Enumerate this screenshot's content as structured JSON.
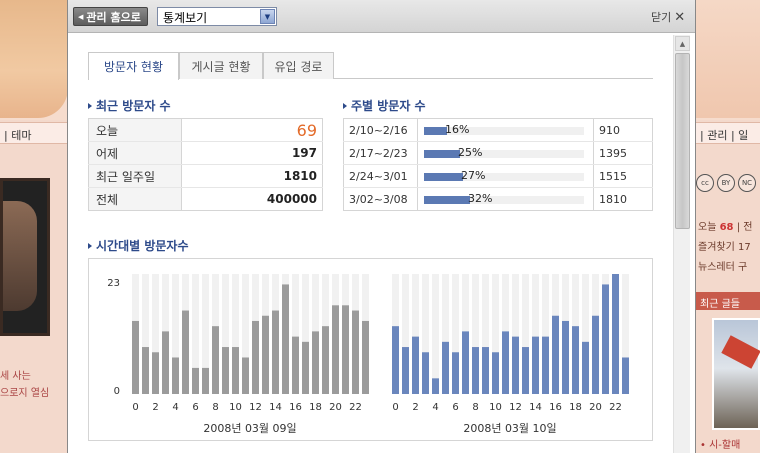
{
  "background": {
    "nav_left": "| 테마",
    "nav_right": "| 관리 | 일",
    "left_lines": [
      "세 사는",
      "으로지 열심"
    ],
    "cc_icons": [
      "cc",
      "BY",
      "NC"
    ],
    "right_lines": [
      {
        "prefix": "오늘",
        "count": "68",
        "suffix": "| 전"
      },
      {
        "prefix": "즐겨찾기 17"
      },
      {
        "prefix": "뉴스레터 구"
      }
    ],
    "recent_label": "최근 글들",
    "bottom_link": "• 시-할매"
  },
  "header": {
    "home_button": "관리 홈으로",
    "view_select": "통계보기",
    "close_label": "닫기"
  },
  "tabs": [
    {
      "label": "방문자 현황",
      "active": true
    },
    {
      "label": "게시글 현황",
      "active": false
    },
    {
      "label": "유입 경로",
      "active": false
    }
  ],
  "recent_visitors": {
    "title": "최근 방문자 수",
    "rows": [
      {
        "label": "오늘",
        "value": "69"
      },
      {
        "label": "어제",
        "value": "197"
      },
      {
        "label": "최근 일주일",
        "value": "1810"
      },
      {
        "label": "전체",
        "value": "400000"
      }
    ]
  },
  "weekly_visitors": {
    "title": "주별 방문자 수",
    "rows": [
      {
        "range": "2/10~2/16",
        "percent": 16,
        "percent_label": "16%",
        "count": "910"
      },
      {
        "range": "2/17~2/23",
        "percent": 25,
        "percent_label": "25%",
        "count": "1395"
      },
      {
        "range": "2/24~3/01",
        "percent": 27,
        "percent_label": "27%",
        "count": "1515"
      },
      {
        "range": "3/02~3/08",
        "percent": 32,
        "percent_label": "32%",
        "count": "1810"
      }
    ]
  },
  "hourly": {
    "title": "시간대별 방문자수",
    "chart_data": {
      "type": "bar",
      "ylim": [
        0,
        23
      ],
      "y_ticks": [
        "23",
        "0"
      ],
      "x_tick_labels": [
        "0",
        "2",
        "4",
        "6",
        "8",
        "10",
        "12",
        "14",
        "16",
        "18",
        "20",
        "22"
      ],
      "categories": [
        0,
        1,
        2,
        3,
        4,
        5,
        6,
        7,
        8,
        9,
        10,
        11,
        12,
        13,
        14,
        15,
        16,
        17,
        18,
        19,
        20,
        21,
        22,
        23
      ],
      "series": [
        {
          "name": "2008년 03월 09일",
          "color": "#9b9b9b",
          "values": [
            14,
            9,
            8,
            12,
            7,
            16,
            5,
            5,
            13,
            9,
            9,
            7,
            14,
            15,
            16,
            21,
            11,
            10,
            12,
            13,
            17,
            17,
            16,
            14
          ]
        },
        {
          "name": "2008년 03월 10일",
          "color": "#6a86bd",
          "values": [
            13,
            9,
            11,
            8,
            3,
            10,
            8,
            12,
            9,
            9,
            8,
            12,
            11,
            9,
            11,
            11,
            15,
            14,
            13,
            10,
            15,
            21,
            23,
            7
          ]
        }
      ]
    }
  },
  "colors": {
    "accent": "#2d4a8a",
    "today": "#e36b2a",
    "bar_fill": "#5b79b3"
  }
}
